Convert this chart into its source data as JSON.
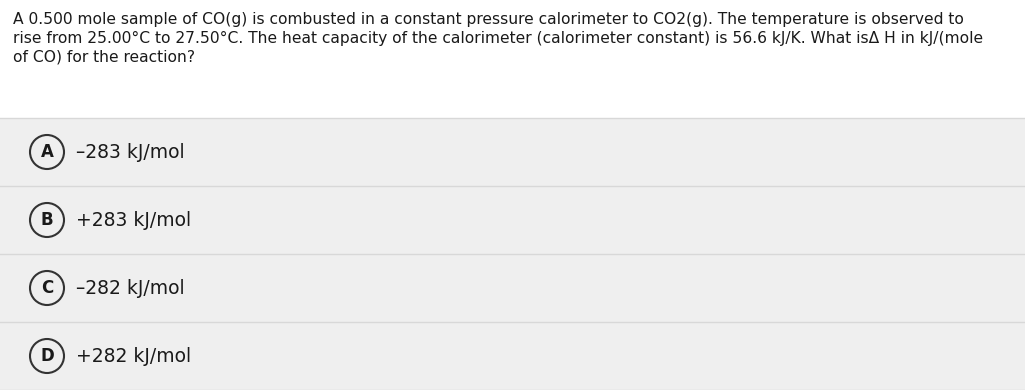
{
  "question_lines": [
    "A 0.500 mole sample of CO(g) is combusted in a constant pressure calorimeter to CO2(g). The temperature is observed to",
    "rise from 25.00°C to 27.50°C. The heat capacity of the calorimeter (calorimeter constant) is 56.6 kJ/K. What isΔ H in kJ/(mole",
    "of CO) for the reaction?"
  ],
  "choices": [
    {
      "label": "A",
      "text": "–283 kJ/mol"
    },
    {
      "label": "B",
      "text": "+283 kJ/mol"
    },
    {
      "label": "C",
      "text": "–282 kJ/mol"
    },
    {
      "label": "D",
      "text": "+282 kJ/mol"
    }
  ],
  "bg_color": "#f5f5f5",
  "choice_bg_color": "#efefef",
  "white_bg": "#ffffff",
  "divider_color": "#d8d8d8",
  "text_color": "#1a1a1a",
  "circle_edge_color": "#333333",
  "circle_face_color": "#efefef",
  "font_size_question": 11.2,
  "font_size_choice": 13.5,
  "font_size_label": 12.0
}
